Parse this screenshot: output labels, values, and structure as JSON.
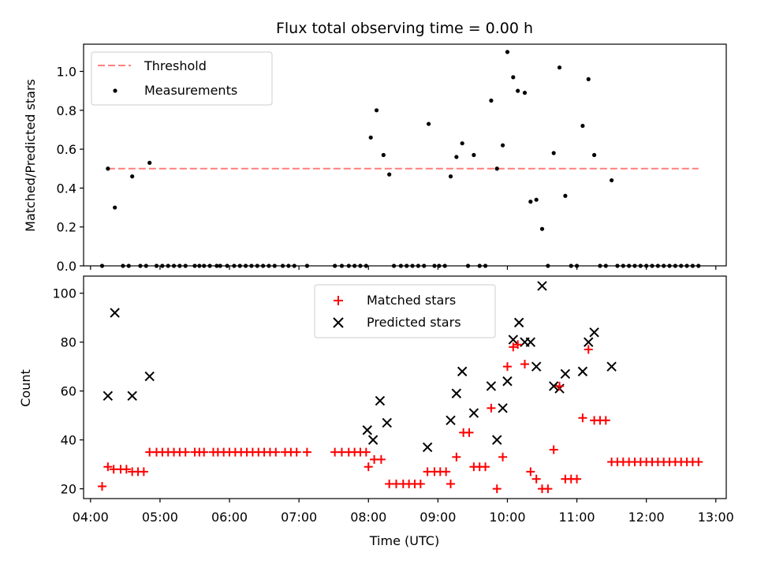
{
  "chart_data": [
    {
      "type": "scatter",
      "title": "Flux total observing time = 0.00 h",
      "xlabel": "",
      "ylabel": "Matched/Predicted stars",
      "ylim": [
        0,
        1.14
      ],
      "yticks": [
        0.0,
        0.2,
        0.4,
        0.6,
        0.8,
        1.0
      ],
      "ytick_labels": [
        "0.0",
        "0.2",
        "0.4",
        "0.6",
        "0.8",
        "1.0"
      ],
      "xlim_hours": [
        3.9,
        13.15
      ],
      "legend_position": "top-left",
      "threshold": {
        "name": "Threshold",
        "value": 0.5,
        "x_range": [
          "04:15",
          "12:45"
        ],
        "color": "#ff7f7f"
      },
      "series": [
        {
          "name": "Measurements",
          "color": "#000000",
          "points": [
            {
              "x": "04:10",
              "y": 0.0
            },
            {
              "x": "04:15",
              "y": 0.5
            },
            {
              "x": "04:21",
              "y": 0.3
            },
            {
              "x": "04:28",
              "y": 0.0
            },
            {
              "x": "04:33",
              "y": 0.0
            },
            {
              "x": "04:36",
              "y": 0.46
            },
            {
              "x": "04:43",
              "y": 0.0
            },
            {
              "x": "04:48",
              "y": 0.0
            },
            {
              "x": "04:51",
              "y": 0.53
            },
            {
              "x": "04:57",
              "y": 0.0
            },
            {
              "x": "05:02",
              "y": 0.0
            },
            {
              "x": "05:07",
              "y": 0.0
            },
            {
              "x": "05:12",
              "y": 0.0
            },
            {
              "x": "05:17",
              "y": 0.0
            },
            {
              "x": "05:22",
              "y": 0.0
            },
            {
              "x": "05:30",
              "y": 0.0
            },
            {
              "x": "05:34",
              "y": 0.0
            },
            {
              "x": "05:38",
              "y": 0.0
            },
            {
              "x": "05:43",
              "y": 0.0
            },
            {
              "x": "05:49",
              "y": 0.0
            },
            {
              "x": "05:52",
              "y": 0.0
            },
            {
              "x": "05:58",
              "y": 0.0
            },
            {
              "x": "06:04",
              "y": 0.0
            },
            {
              "x": "06:09",
              "y": 0.0
            },
            {
              "x": "06:14",
              "y": 0.0
            },
            {
              "x": "06:19",
              "y": 0.0
            },
            {
              "x": "06:24",
              "y": 0.0
            },
            {
              "x": "06:29",
              "y": 0.0
            },
            {
              "x": "06:34",
              "y": 0.0
            },
            {
              "x": "06:39",
              "y": 0.0
            },
            {
              "x": "06:46",
              "y": 0.0
            },
            {
              "x": "06:51",
              "y": 0.0
            },
            {
              "x": "06:56",
              "y": 0.0
            },
            {
              "x": "07:07",
              "y": 0.0
            },
            {
              "x": "07:31",
              "y": 0.0
            },
            {
              "x": "07:37",
              "y": 0.0
            },
            {
              "x": "07:43",
              "y": 0.0
            },
            {
              "x": "07:48",
              "y": 0.0
            },
            {
              "x": "07:53",
              "y": 0.0
            },
            {
              "x": "07:58",
              "y": 0.0
            },
            {
              "x": "08:02",
              "y": 0.66
            },
            {
              "x": "08:07",
              "y": 0.8
            },
            {
              "x": "08:13",
              "y": 0.57
            },
            {
              "x": "08:18",
              "y": 0.47
            },
            {
              "x": "08:22",
              "y": 0.0
            },
            {
              "x": "08:28",
              "y": 0.0
            },
            {
              "x": "08:33",
              "y": 0.0
            },
            {
              "x": "08:38",
              "y": 0.0
            },
            {
              "x": "08:43",
              "y": 0.0
            },
            {
              "x": "08:48",
              "y": 0.0
            },
            {
              "x": "08:52",
              "y": 0.73
            },
            {
              "x": "08:57",
              "y": 0.0
            },
            {
              "x": "09:01",
              "y": 0.0
            },
            {
              "x": "09:06",
              "y": 0.0
            },
            {
              "x": "09:11",
              "y": 0.46
            },
            {
              "x": "09:16",
              "y": 0.56
            },
            {
              "x": "09:21",
              "y": 0.63
            },
            {
              "x": "09:26",
              "y": 0.0
            },
            {
              "x": "09:31",
              "y": 0.57
            },
            {
              "x": "09:36",
              "y": 0.0
            },
            {
              "x": "09:41",
              "y": 0.0
            },
            {
              "x": "09:46",
              "y": 0.85
            },
            {
              "x": "09:51",
              "y": 0.5
            },
            {
              "x": "09:56",
              "y": 0.62
            },
            {
              "x": "10:00",
              "y": 1.1
            },
            {
              "x": "10:05",
              "y": 0.97
            },
            {
              "x": "10:09",
              "y": 0.9
            },
            {
              "x": "10:15",
              "y": 0.89
            },
            {
              "x": "10:20",
              "y": 0.33
            },
            {
              "x": "10:25",
              "y": 0.34
            },
            {
              "x": "10:30",
              "y": 0.19
            },
            {
              "x": "10:35",
              "y": 0.0
            },
            {
              "x": "10:40",
              "y": 0.58
            },
            {
              "x": "10:45",
              "y": 1.02
            },
            {
              "x": "10:50",
              "y": 0.36
            },
            {
              "x": "10:55",
              "y": 0.0
            },
            {
              "x": "11:00",
              "y": 0.0
            },
            {
              "x": "11:05",
              "y": 0.72
            },
            {
              "x": "11:10",
              "y": 0.96
            },
            {
              "x": "11:15",
              "y": 0.57
            },
            {
              "x": "11:20",
              "y": 0.0
            },
            {
              "x": "11:25",
              "y": 0.0
            },
            {
              "x": "11:30",
              "y": 0.44
            },
            {
              "x": "11:35",
              "y": 0.0
            },
            {
              "x": "11:40",
              "y": 0.0
            },
            {
              "x": "11:45",
              "y": 0.0
            },
            {
              "x": "11:50",
              "y": 0.0
            },
            {
              "x": "11:55",
              "y": 0.0
            },
            {
              "x": "12:00",
              "y": 0.0
            },
            {
              "x": "12:05",
              "y": 0.0
            },
            {
              "x": "12:10",
              "y": 0.0
            },
            {
              "x": "12:15",
              "y": 0.0
            },
            {
              "x": "12:20",
              "y": 0.0
            },
            {
              "x": "12:25",
              "y": 0.0
            },
            {
              "x": "12:30",
              "y": 0.0
            },
            {
              "x": "12:35",
              "y": 0.0
            },
            {
              "x": "12:40",
              "y": 0.0
            },
            {
              "x": "12:45",
              "y": 0.0
            }
          ]
        }
      ]
    },
    {
      "type": "scatter",
      "title": "",
      "xlabel": "Time (UTC)",
      "ylabel": "Count",
      "ylim": [
        16,
        107
      ],
      "yticks": [
        20,
        40,
        60,
        80,
        100
      ],
      "ytick_labels": [
        "20",
        "40",
        "60",
        "80",
        "100"
      ],
      "xlim_hours": [
        3.9,
        13.15
      ],
      "xticks": [
        "04:00",
        "05:00",
        "06:00",
        "07:00",
        "08:00",
        "09:00",
        "10:00",
        "11:00",
        "12:00",
        "13:00"
      ],
      "legend_position": "top-center",
      "series": [
        {
          "name": "Matched stars",
          "marker": "plus",
          "color": "#ff0000",
          "points": [
            {
              "x": "04:10",
              "y": 21
            },
            {
              "x": "04:15",
              "y": 29
            },
            {
              "x": "04:20",
              "y": 28
            },
            {
              "x": "04:26",
              "y": 28
            },
            {
              "x": "04:31",
              "y": 28
            },
            {
              "x": "04:36",
              "y": 27
            },
            {
              "x": "04:41",
              "y": 27
            },
            {
              "x": "04:46",
              "y": 27
            },
            {
              "x": "04:51",
              "y": 35
            },
            {
              "x": "04:57",
              "y": 35
            },
            {
              "x": "05:02",
              "y": 35
            },
            {
              "x": "05:07",
              "y": 35
            },
            {
              "x": "05:12",
              "y": 35
            },
            {
              "x": "05:17",
              "y": 35
            },
            {
              "x": "05:22",
              "y": 35
            },
            {
              "x": "05:30",
              "y": 35
            },
            {
              "x": "05:34",
              "y": 35
            },
            {
              "x": "05:38",
              "y": 35
            },
            {
              "x": "05:46",
              "y": 35
            },
            {
              "x": "05:50",
              "y": 35
            },
            {
              "x": "05:55",
              "y": 35
            },
            {
              "x": "06:00",
              "y": 35
            },
            {
              "x": "06:05",
              "y": 35
            },
            {
              "x": "06:10",
              "y": 35
            },
            {
              "x": "06:15",
              "y": 35
            },
            {
              "x": "06:20",
              "y": 35
            },
            {
              "x": "06:25",
              "y": 35
            },
            {
              "x": "06:30",
              "y": 35
            },
            {
              "x": "06:35",
              "y": 35
            },
            {
              "x": "06:40",
              "y": 35
            },
            {
              "x": "06:48",
              "y": 35
            },
            {
              "x": "06:53",
              "y": 35
            },
            {
              "x": "06:58",
              "y": 35
            },
            {
              "x": "07:07",
              "y": 35
            },
            {
              "x": "07:31",
              "y": 35
            },
            {
              "x": "07:37",
              "y": 35
            },
            {
              "x": "07:43",
              "y": 35
            },
            {
              "x": "07:48",
              "y": 35
            },
            {
              "x": "07:53",
              "y": 35
            },
            {
              "x": "07:58",
              "y": 35
            },
            {
              "x": "08:00",
              "y": 29
            },
            {
              "x": "08:05",
              "y": 32
            },
            {
              "x": "08:11",
              "y": 32
            },
            {
              "x": "08:18",
              "y": 22
            },
            {
              "x": "08:24",
              "y": 22
            },
            {
              "x": "08:30",
              "y": 22
            },
            {
              "x": "08:35",
              "y": 22
            },
            {
              "x": "08:40",
              "y": 22
            },
            {
              "x": "08:45",
              "y": 22
            },
            {
              "x": "08:51",
              "y": 27
            },
            {
              "x": "08:57",
              "y": 27
            },
            {
              "x": "09:02",
              "y": 27
            },
            {
              "x": "09:07",
              "y": 27
            },
            {
              "x": "09:11",
              "y": 22
            },
            {
              "x": "09:16",
              "y": 33
            },
            {
              "x": "09:22",
              "y": 43
            },
            {
              "x": "09:27",
              "y": 43
            },
            {
              "x": "09:31",
              "y": 29
            },
            {
              "x": "09:36",
              "y": 29
            },
            {
              "x": "09:41",
              "y": 29
            },
            {
              "x": "09:46",
              "y": 53
            },
            {
              "x": "09:51",
              "y": 20
            },
            {
              "x": "09:56",
              "y": 33
            },
            {
              "x": "10:00",
              "y": 70
            },
            {
              "x": "10:05",
              "y": 78
            },
            {
              "x": "10:09",
              "y": 79
            },
            {
              "x": "10:15",
              "y": 71
            },
            {
              "x": "10:20",
              "y": 27
            },
            {
              "x": "10:25",
              "y": 24
            },
            {
              "x": "10:30",
              "y": 20
            },
            {
              "x": "10:35",
              "y": 20
            },
            {
              "x": "10:40",
              "y": 36
            },
            {
              "x": "10:45",
              "y": 62
            },
            {
              "x": "10:50",
              "y": 24
            },
            {
              "x": "10:55",
              "y": 24
            },
            {
              "x": "11:00",
              "y": 24
            },
            {
              "x": "11:05",
              "y": 49
            },
            {
              "x": "11:10",
              "y": 77
            },
            {
              "x": "11:15",
              "y": 48
            },
            {
              "x": "11:20",
              "y": 48
            },
            {
              "x": "11:25",
              "y": 48
            },
            {
              "x": "11:30",
              "y": 31
            },
            {
              "x": "11:35",
              "y": 31
            },
            {
              "x": "11:40",
              "y": 31
            },
            {
              "x": "11:45",
              "y": 31
            },
            {
              "x": "11:50",
              "y": 31
            },
            {
              "x": "11:55",
              "y": 31
            },
            {
              "x": "12:00",
              "y": 31
            },
            {
              "x": "12:05",
              "y": 31
            },
            {
              "x": "12:10",
              "y": 31
            },
            {
              "x": "12:15",
              "y": 31
            },
            {
              "x": "12:20",
              "y": 31
            },
            {
              "x": "12:25",
              "y": 31
            },
            {
              "x": "12:30",
              "y": 31
            },
            {
              "x": "12:35",
              "y": 31
            },
            {
              "x": "12:40",
              "y": 31
            },
            {
              "x": "12:45",
              "y": 31
            }
          ]
        },
        {
          "name": "Predicted stars",
          "marker": "x",
          "color": "#000000",
          "points": [
            {
              "x": "04:15",
              "y": 58
            },
            {
              "x": "04:21",
              "y": 92
            },
            {
              "x": "04:36",
              "y": 58
            },
            {
              "x": "04:51",
              "y": 66
            },
            {
              "x": "07:59",
              "y": 44
            },
            {
              "x": "08:04",
              "y": 40
            },
            {
              "x": "08:10",
              "y": 56
            },
            {
              "x": "08:16",
              "y": 47
            },
            {
              "x": "08:51",
              "y": 37
            },
            {
              "x": "09:11",
              "y": 48
            },
            {
              "x": "09:16",
              "y": 59
            },
            {
              "x": "09:21",
              "y": 68
            },
            {
              "x": "09:31",
              "y": 51
            },
            {
              "x": "09:46",
              "y": 62
            },
            {
              "x": "09:51",
              "y": 40
            },
            {
              "x": "09:56",
              "y": 53
            },
            {
              "x": "10:00",
              "y": 64
            },
            {
              "x": "10:05",
              "y": 81
            },
            {
              "x": "10:10",
              "y": 88
            },
            {
              "x": "10:15",
              "y": 80
            },
            {
              "x": "10:20",
              "y": 80
            },
            {
              "x": "10:25",
              "y": 70
            },
            {
              "x": "10:30",
              "y": 103
            },
            {
              "x": "10:40",
              "y": 62
            },
            {
              "x": "10:45",
              "y": 61
            },
            {
              "x": "10:50",
              "y": 67
            },
            {
              "x": "11:05",
              "y": 68
            },
            {
              "x": "11:10",
              "y": 80
            },
            {
              "x": "11:15",
              "y": 84
            },
            {
              "x": "11:30",
              "y": 70
            }
          ]
        }
      ]
    }
  ]
}
